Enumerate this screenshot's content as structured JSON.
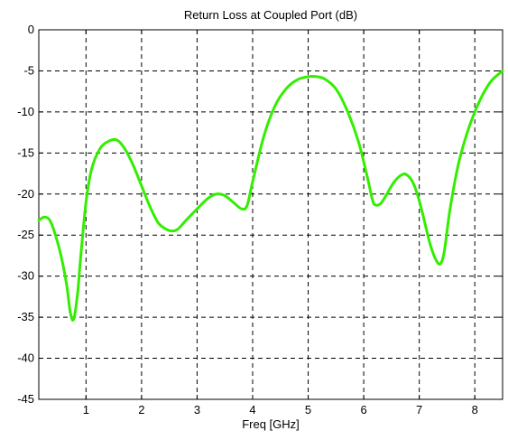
{
  "chart_data": {
    "type": "line",
    "title": "Return Loss at Coupled Port (dB)",
    "xlabel": "Freq [GHz]",
    "ylabel": "",
    "xlim": [
      0.15,
      8.5
    ],
    "ylim": [
      -45,
      0
    ],
    "xticks": [
      1,
      2,
      3,
      4,
      5,
      6,
      7,
      8
    ],
    "yticks": [
      0,
      -5,
      -10,
      -15,
      -20,
      -25,
      -30,
      -35,
      -40,
      -45
    ],
    "grid": true,
    "grid_style": "dashed",
    "series": [
      {
        "color": "#33ee00",
        "x": [
          0.15,
          0.25,
          0.35,
          0.45,
          0.55,
          0.65,
          0.72,
          0.78,
          0.85,
          0.9,
          1.0,
          1.1,
          1.25,
          1.4,
          1.55,
          1.7,
          1.85,
          2.0,
          2.15,
          2.3,
          2.45,
          2.55,
          2.65,
          2.8,
          3.0,
          3.2,
          3.35,
          3.5,
          3.65,
          3.8,
          3.9,
          4.0,
          4.2,
          4.4,
          4.6,
          4.8,
          5.0,
          5.15,
          5.3,
          5.5,
          5.7,
          5.9,
          6.05,
          6.15,
          6.2,
          6.3,
          6.4,
          6.55,
          6.7,
          6.8,
          6.9,
          7.0,
          7.1,
          7.2,
          7.3,
          7.38,
          7.45,
          7.55,
          7.7,
          7.85,
          8.0,
          8.15,
          8.3,
          8.5
        ],
        "y": [
          -23.2,
          -22.8,
          -23.2,
          -25.0,
          -27.5,
          -31.0,
          -34.5,
          -35.2,
          -32.0,
          -28.0,
          -21.0,
          -17.0,
          -14.5,
          -13.6,
          -13.4,
          -14.5,
          -16.5,
          -19.0,
          -21.5,
          -23.5,
          -24.3,
          -24.5,
          -24.3,
          -23.2,
          -21.8,
          -20.5,
          -20.0,
          -20.2,
          -21.0,
          -21.8,
          -21.4,
          -18.5,
          -13.0,
          -9.3,
          -7.2,
          -6.1,
          -5.7,
          -5.7,
          -6.0,
          -7.2,
          -9.8,
          -13.5,
          -17.5,
          -20.5,
          -21.3,
          -21.2,
          -20.2,
          -18.5,
          -17.6,
          -17.8,
          -18.8,
          -20.8,
          -23.5,
          -26.2,
          -28.0,
          -28.5,
          -27.0,
          -22.0,
          -16.5,
          -12.8,
          -10.0,
          -7.8,
          -6.2,
          -5.0
        ]
      }
    ]
  }
}
